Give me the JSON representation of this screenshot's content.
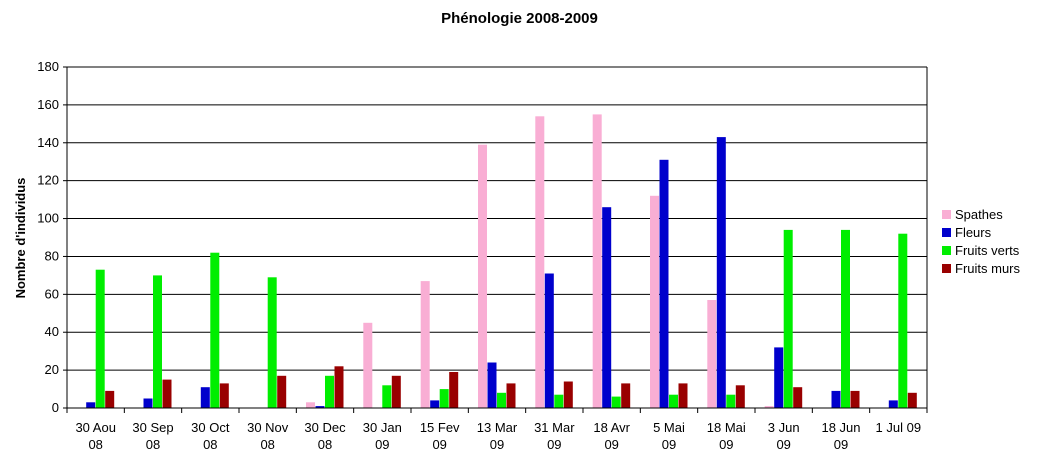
{
  "chart_data": {
    "type": "bar",
    "title": "Phénologie 2008-2009",
    "xlabel": "",
    "ylabel": "Nombre d'individus",
    "ylim": [
      0,
      180
    ],
    "yticks": [
      0,
      20,
      40,
      60,
      80,
      100,
      120,
      140,
      160,
      180
    ],
    "grid": true,
    "legend_position": "right",
    "categories": [
      [
        "30 Aou",
        "08"
      ],
      [
        "30 Sep",
        "08"
      ],
      [
        "30 Oct",
        "08"
      ],
      [
        "30 Nov",
        "08"
      ],
      [
        "30 Dec",
        "08"
      ],
      [
        "30 Jan",
        "09"
      ],
      [
        "15 Fev",
        "09"
      ],
      [
        "13 Mar",
        "09"
      ],
      [
        "31 Mar",
        "09"
      ],
      [
        "18 Avr",
        "09"
      ],
      [
        "5 Mai",
        "09"
      ],
      [
        "18 Mai",
        "09"
      ],
      [
        "3 Jun",
        "09"
      ],
      [
        "18 Jun",
        "09"
      ],
      [
        "1 Jul 09",
        ""
      ]
    ],
    "series": [
      {
        "name": "Spathes",
        "color": "#f9aed4",
        "values": [
          0,
          0,
          0,
          0,
          3,
          45,
          67,
          139,
          154,
          155,
          112,
          57,
          1,
          0,
          0
        ]
      },
      {
        "name": "Fleurs",
        "color": "#0000cc",
        "values": [
          3,
          5,
          11,
          0,
          1,
          0,
          4,
          24,
          71,
          106,
          131,
          143,
          32,
          9,
          4
        ]
      },
      {
        "name": "Fruits verts",
        "color": "#00ee00",
        "values": [
          73,
          70,
          82,
          69,
          17,
          12,
          10,
          8,
          7,
          6,
          7,
          7,
          94,
          94,
          92
        ]
      },
      {
        "name": "Fruits murs",
        "color": "#990000",
        "values": [
          9,
          15,
          13,
          17,
          22,
          17,
          19,
          13,
          14,
          13,
          13,
          12,
          11,
          9,
          8
        ]
      }
    ]
  }
}
